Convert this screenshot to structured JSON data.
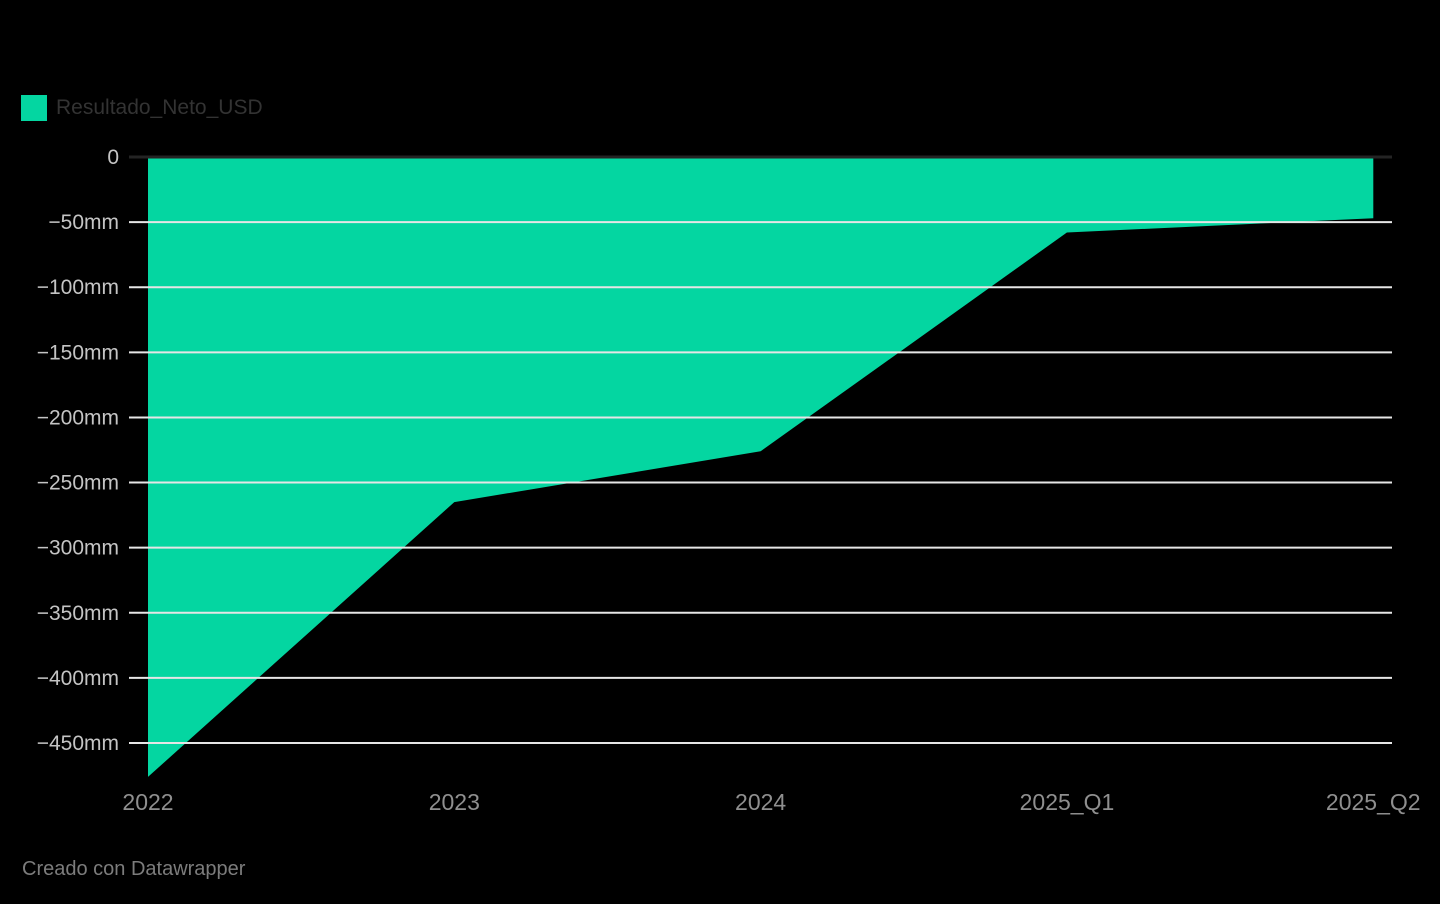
{
  "legend": {
    "label": "Resultado_Neto_USD"
  },
  "footer": {
    "text": "Creado con Datawrapper"
  },
  "colors": {
    "background": "#000000",
    "area": "#04d6a1",
    "gridline": "#e6e6e6",
    "baseline": "#242424",
    "y_tick_text": "#c4c4c4",
    "x_tick_text": "#8f8f8f",
    "legend_text": "#333333",
    "footer_text": "#7c7c7c"
  },
  "chart_data": {
    "type": "area",
    "title": "",
    "xlabel": "",
    "ylabel": "",
    "value_suffix": "mm",
    "categories": [
      "2022",
      "2023",
      "2024",
      "2025_Q1",
      "2025_Q2"
    ],
    "series": [
      {
        "name": "Resultado_Neto_USD",
        "values": [
          -476,
          -265,
          -226,
          -58,
          -47
        ]
      }
    ],
    "ylim": [
      -476,
      0
    ],
    "yticks": [
      0,
      -50,
      -100,
      -150,
      -200,
      -250,
      -300,
      -350,
      -400,
      -450
    ],
    "ytick_labels": [
      "0",
      "−50mm",
      "−100mm",
      "−150mm",
      "−200mm",
      "−250mm",
      "−300mm",
      "−350mm",
      "−400mm",
      "−450mm"
    ],
    "grid": true,
    "baseline_at_zero": true,
    "legend_position": "top-left"
  }
}
